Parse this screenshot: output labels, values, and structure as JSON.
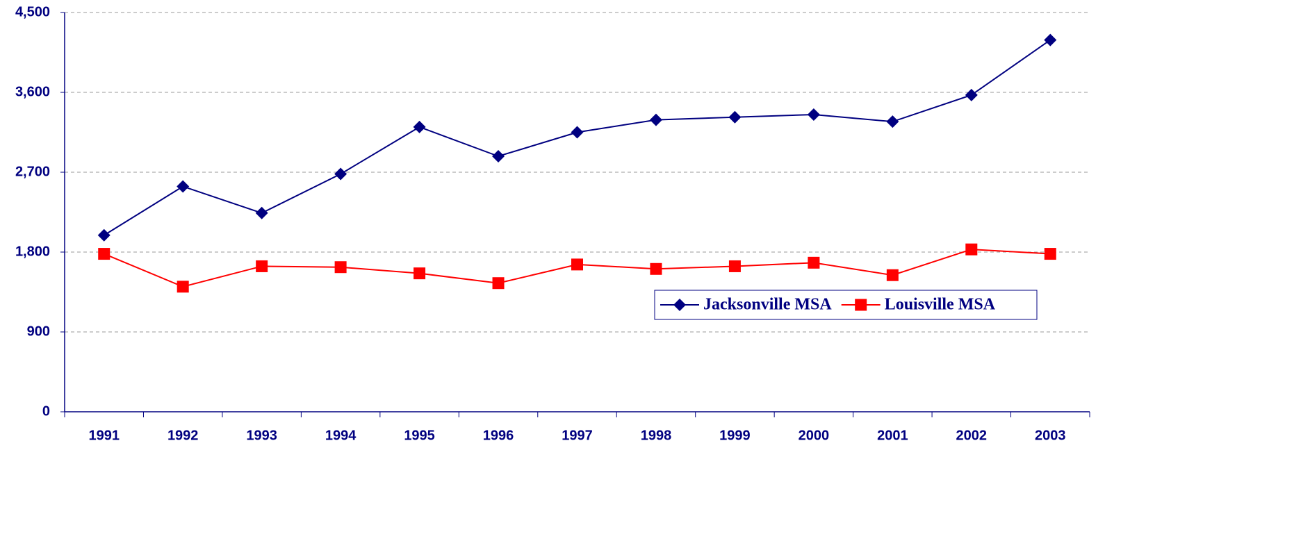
{
  "chart_data": {
    "type": "line",
    "categories": [
      "1991",
      "1992",
      "1993",
      "1994",
      "1995",
      "1996",
      "1997",
      "1998",
      "1999",
      "2000",
      "2001",
      "2002",
      "2003"
    ],
    "series": [
      {
        "name": "Jacksonville MSA",
        "color": "#000080",
        "marker": "diamond",
        "values": [
          1990,
          2540,
          2240,
          2680,
          3210,
          2880,
          3150,
          3290,
          3320,
          3350,
          3270,
          3570,
          4190
        ]
      },
      {
        "name": "Louisville MSA",
        "color": "#ff0000",
        "marker": "square",
        "values": [
          1780,
          1410,
          1640,
          1630,
          1560,
          1450,
          1660,
          1610,
          1640,
          1680,
          1540,
          1830,
          1780
        ]
      }
    ],
    "ylim": [
      0,
      4500
    ],
    "yticks": [
      0,
      900,
      {
        "value": 1800,
        "label": "1,800"
      },
      {
        "value": 2700,
        "label": "2,700"
      },
      {
        "value": 3600,
        "label": "3,600"
      },
      {
        "value": 4500,
        "label": "4,500"
      }
    ],
    "grid": true,
    "legend": "right"
  }
}
